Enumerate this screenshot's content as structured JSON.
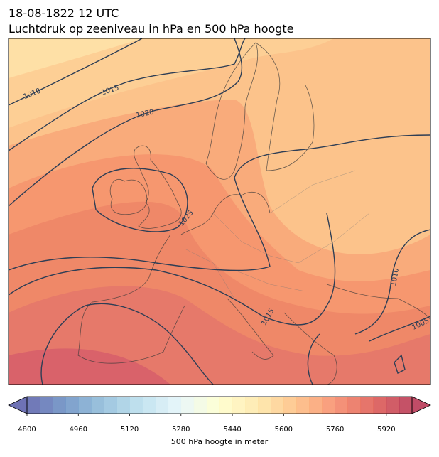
{
  "title": "18-08-1822 12 UTC",
  "subtitle": "Luchtdruk op zeeniveau in hPa en 500 hPa hoogte",
  "isobar_labels": [
    1010,
    1015,
    1020,
    1025,
    1010,
    1005,
    1015
  ],
  "colorbar": {
    "label": "500 hPa hoogte in meter",
    "range": [
      4800,
      6000
    ],
    "step": 40,
    "ticks": [
      4800,
      4960,
      5120,
      5280,
      5440,
      5600,
      5760,
      5920
    ],
    "colormap": [
      "#313695",
      "#4575b4",
      "#74add1",
      "#abd9e9",
      "#e0f3f8",
      "#ffffbf",
      "#fee090",
      "#fdae61",
      "#f46d43",
      "#d73027",
      "#a50026"
    ],
    "opacity": 0.7,
    "extend": "both"
  }
}
